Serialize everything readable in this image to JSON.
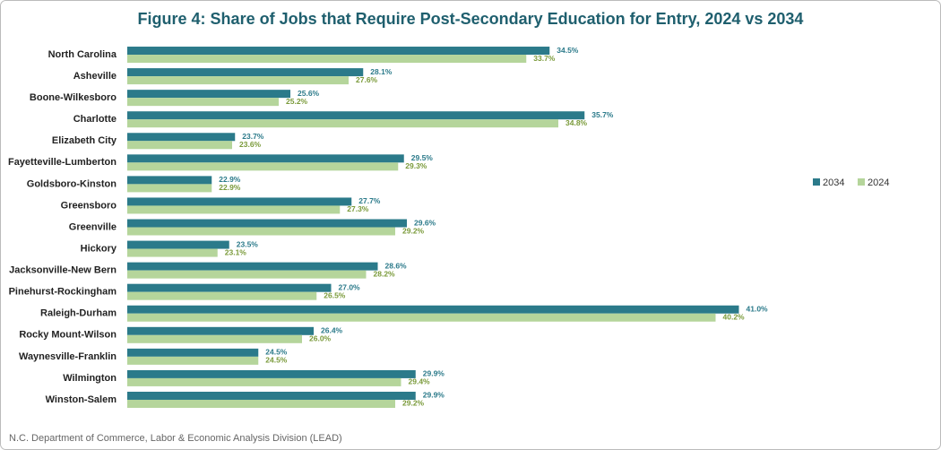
{
  "chart_data": {
    "type": "bar",
    "orientation": "horizontal",
    "title": "Figure 4: Share of Jobs that Require Post-Secondary Education for Entry, 2024 vs 2034",
    "source": "N.C. Department of Commerce, Labor & Economic Analysis Division (LEAD)",
    "categories": [
      "North Carolina",
      "Asheville",
      "Boone-Wilkesboro",
      "Charlotte",
      "Elizabeth City",
      "Fayetteville-Lumberton",
      "Goldsboro-Kinston",
      "Greensboro",
      "Greenville",
      "Hickory",
      "Jacksonville-New Bern",
      "Pinehurst-Rockingham",
      "Raleigh-Durham",
      "Rocky Mount-Wilson",
      "Waynesville-Franklin",
      "Wilmington",
      "Winston-Salem"
    ],
    "series": [
      {
        "name": "2034",
        "color": "#2b7a8a",
        "label_color": "#2b7a8a",
        "values": [
          34.5,
          28.1,
          25.6,
          35.7,
          23.7,
          29.5,
          22.9,
          27.7,
          29.6,
          23.5,
          28.6,
          27.0,
          41.0,
          26.4,
          24.5,
          29.9,
          29.9
        ],
        "value_labels": [
          "34.5%",
          "28.1%",
          "25.6%",
          "35.7%",
          "23.7%",
          "29.5%",
          "22.9%",
          "27.7%",
          "29.6%",
          "23.5%",
          "28.6%",
          "27.0%",
          "41.0%",
          "26.4%",
          "24.5%",
          "29.9%",
          "29.9%"
        ]
      },
      {
        "name": "2024",
        "color": "#b5d59b",
        "label_color": "#7a9a3a",
        "values": [
          33.7,
          27.6,
          25.2,
          34.8,
          23.6,
          29.3,
          22.9,
          27.3,
          29.2,
          23.1,
          28.2,
          26.5,
          40.2,
          26.0,
          24.5,
          29.4,
          29.2
        ],
        "value_labels": [
          "33.7%",
          "27.6%",
          "25.2%",
          "34.8%",
          "23.6%",
          "29.3%",
          "22.9%",
          "27.3%",
          "29.2%",
          "23.1%",
          "28.2%",
          "26.5%",
          "40.2%",
          "26.0%",
          "24.5%",
          "29.4%",
          "29.2%"
        ]
      }
    ],
    "xlim": [
      20,
      42
    ],
    "legend": "right"
  }
}
